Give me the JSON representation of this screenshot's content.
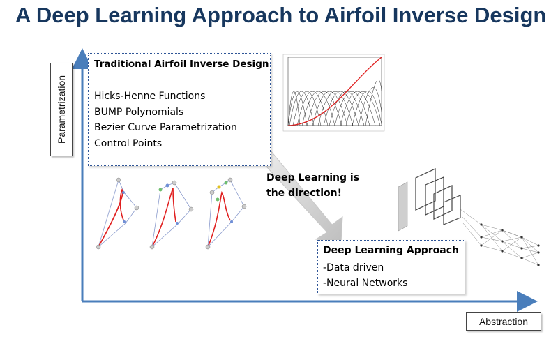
{
  "slide": {
    "title": "A Deep Learning Approach to Airfoil Inverse Design"
  },
  "axes": {
    "y_label": "Parametrization",
    "x_label": "Abstraction"
  },
  "traditional_box": {
    "title": "Traditional Airfoil Inverse Design",
    "items": [
      "Hicks-Henne Functions",
      "BUMP Polynomials",
      "Bezier Curve Parametrization",
      "Control Points"
    ]
  },
  "deep_learning_box": {
    "title": "Deep Learning Approach",
    "items": [
      "-Data driven",
      "-Neural Networks"
    ]
  },
  "callout": {
    "line1": "Deep Learning is",
    "line2": "the direction!"
  },
  "colors": {
    "title": "#17375e",
    "axis": "#4a7ebb",
    "box_border": "#2f5597",
    "curve_red": "#e02020",
    "arrow_fill": "#d9d9d9"
  }
}
